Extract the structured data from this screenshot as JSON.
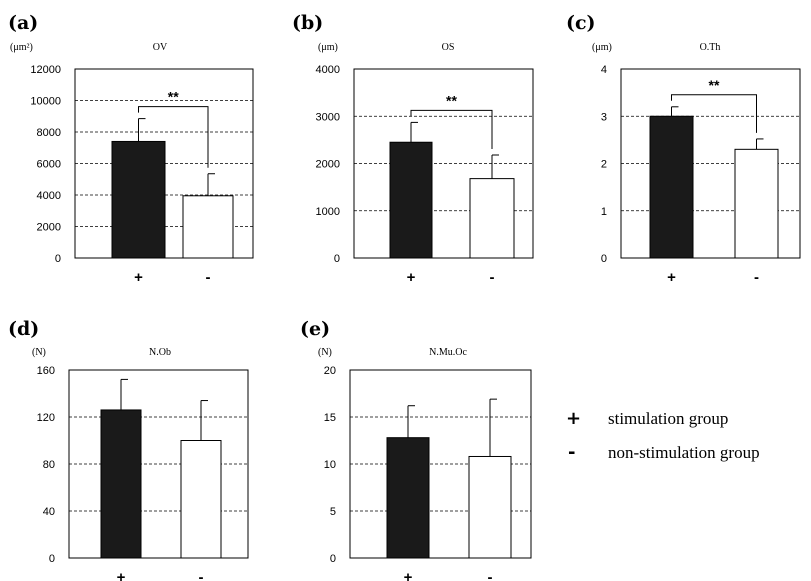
{
  "legend": {
    "items": [
      {
        "symbol": "+",
        "label": "stimulation group"
      },
      {
        "symbol": "-",
        "label": "non-stimulation group"
      }
    ]
  },
  "chart_data": [
    {
      "type": "bar",
      "panel": "(a)",
      "unit": "(μm²)",
      "title": "OV",
      "categories": [
        "+",
        "-"
      ],
      "values": [
        7400,
        3950
      ],
      "errors": [
        1450,
        1400
      ],
      "colors": [
        "#1a1a1a",
        "#ffffff"
      ],
      "ylim": [
        0,
        12000
      ],
      "yticks": [
        "0",
        "2000",
        "4000",
        "6000",
        "8000",
        "10000",
        "12000"
      ],
      "grid": true,
      "significance": "**"
    },
    {
      "type": "bar",
      "panel": "(b)",
      "unit": "(μm)",
      "title": "OS",
      "categories": [
        "+",
        "-"
      ],
      "values": [
        2450,
        1680
      ],
      "errors": [
        420,
        500
      ],
      "colors": [
        "#1a1a1a",
        "#ffffff"
      ],
      "ylim": [
        0,
        4000
      ],
      "yticks": [
        "0",
        "1000",
        "2000",
        "3000",
        "4000"
      ],
      "grid": true,
      "significance": "**"
    },
    {
      "type": "bar",
      "panel": "(c)",
      "unit": "(μm)",
      "title": "O.Th",
      "categories": [
        "+",
        "-"
      ],
      "values": [
        3.0,
        2.3
      ],
      "errors": [
        0.2,
        0.22
      ],
      "colors": [
        "#1a1a1a",
        "#ffffff"
      ],
      "ylim": [
        0,
        4
      ],
      "yticks": [
        "0",
        "1",
        "2",
        "3",
        "4"
      ],
      "grid": true,
      "significance": "**"
    },
    {
      "type": "bar",
      "panel": "(d)",
      "unit": "(N)",
      "title": "N.Ob",
      "categories": [
        "+",
        "-"
      ],
      "values": [
        126,
        100
      ],
      "errors": [
        26,
        34
      ],
      "colors": [
        "#1a1a1a",
        "#ffffff"
      ],
      "ylim": [
        0,
        160
      ],
      "yticks": [
        "0",
        "40",
        "80",
        "120",
        "160"
      ],
      "grid": true,
      "significance": ""
    },
    {
      "type": "bar",
      "panel": "(e)",
      "unit": "(N)",
      "title": "N.Mu.Oc",
      "categories": [
        "+",
        "-"
      ],
      "values": [
        12.8,
        10.8
      ],
      "errors": [
        3.4,
        6.1
      ],
      "colors": [
        "#1a1a1a",
        "#ffffff"
      ],
      "ylim": [
        0,
        20
      ],
      "yticks": [
        "0",
        "5",
        "10",
        "15",
        "20"
      ],
      "grid": true,
      "significance": ""
    }
  ]
}
